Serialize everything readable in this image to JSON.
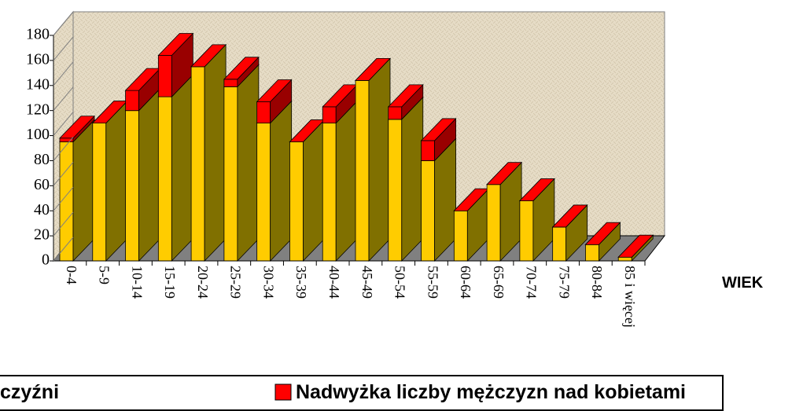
{
  "chart_data": {
    "type": "bar3d_stacked",
    "x_label": "WIEK",
    "categories": [
      "0-4",
      "5-9",
      "10-14",
      "15-19",
      "20-24",
      "25-29",
      "30-34",
      "35-39",
      "40-44",
      "45-49",
      "50-54",
      "55-59",
      "60-64",
      "65-69",
      "70-74",
      "75-79",
      "80-84",
      "85 i więcej"
    ],
    "series": [
      {
        "name": "czyźni",
        "color": "#ffcc00",
        "side_color": "#807000",
        "values": [
          95,
          110,
          120,
          131,
          155,
          139,
          110,
          95,
          110,
          144,
          113,
          80,
          40,
          61,
          48,
          27,
          13,
          3
        ]
      },
      {
        "name": "Nadwyżka liczby mężczyzn nad kobietami",
        "color": "#ff0000",
        "side_color": "#990000",
        "values": [
          3,
          0,
          16,
          33,
          0,
          6,
          17,
          0,
          13,
          0,
          10,
          16,
          0,
          0,
          0,
          0,
          0,
          0
        ]
      }
    ],
    "ylim": [
      0,
      180
    ],
    "yticks": [
      0,
      20,
      40,
      60,
      80,
      100,
      120,
      140,
      160,
      180
    ]
  }
}
